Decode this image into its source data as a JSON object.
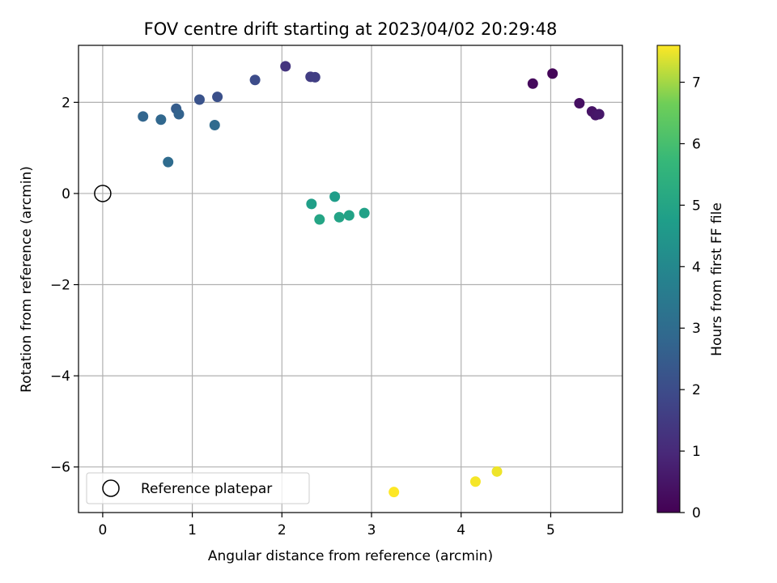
{
  "chart_data": {
    "type": "scatter",
    "title": "FOV centre drift starting at 2023/04/02 20:29:48",
    "xlabel": "Angular distance from reference (arcmin)",
    "ylabel": "Rotation from reference (arcmin)",
    "xlim": [
      -0.27,
      5.8
    ],
    "ylim": [
      -7.0,
      3.25
    ],
    "xticks": [
      0,
      1,
      2,
      3,
      4,
      5
    ],
    "yticks": [
      -6,
      -4,
      -2,
      0,
      2
    ],
    "grid": true,
    "legend": {
      "label": "Reference platepar",
      "placement": "lower-left"
    },
    "reference_point": {
      "x": 0,
      "y": 0
    },
    "colorbar": {
      "label": "Hours from first FF file",
      "range": [
        0,
        7.6
      ],
      "ticks": [
        0,
        1,
        2,
        3,
        4,
        5,
        6,
        7
      ],
      "colormap": "viridis"
    },
    "points": [
      {
        "x": 5.02,
        "y": 2.63,
        "hours": 0.1
      },
      {
        "x": 4.8,
        "y": 2.41,
        "hours": 0.2
      },
      {
        "x": 5.32,
        "y": 1.98,
        "hours": 0.35
      },
      {
        "x": 5.46,
        "y": 1.8,
        "hours": 0.45
      },
      {
        "x": 5.5,
        "y": 1.72,
        "hours": 0.5
      },
      {
        "x": 5.54,
        "y": 1.74,
        "hours": 0.55
      },
      {
        "x": 2.04,
        "y": 2.79,
        "hours": 1.3
      },
      {
        "x": 2.32,
        "y": 2.56,
        "hours": 1.55
      },
      {
        "x": 2.37,
        "y": 2.55,
        "hours": 1.6
      },
      {
        "x": 1.7,
        "y": 2.49,
        "hours": 2.0
      },
      {
        "x": 1.28,
        "y": 2.12,
        "hours": 2.1
      },
      {
        "x": 1.08,
        "y": 2.06,
        "hours": 2.2
      },
      {
        "x": 0.82,
        "y": 1.86,
        "hours": 2.5
      },
      {
        "x": 0.85,
        "y": 1.74,
        "hours": 2.7
      },
      {
        "x": 0.45,
        "y": 1.69,
        "hours": 2.8
      },
      {
        "x": 0.65,
        "y": 1.62,
        "hours": 2.85
      },
      {
        "x": 1.25,
        "y": 1.5,
        "hours": 2.95
      },
      {
        "x": 0.73,
        "y": 0.69,
        "hours": 3.0
      },
      {
        "x": 2.59,
        "y": -0.07,
        "hours": 4.7
      },
      {
        "x": 2.33,
        "y": -0.23,
        "hours": 4.8
      },
      {
        "x": 2.92,
        "y": -0.43,
        "hours": 4.85
      },
      {
        "x": 2.75,
        "y": -0.48,
        "hours": 4.9
      },
      {
        "x": 2.64,
        "y": -0.52,
        "hours": 4.95
      },
      {
        "x": 2.42,
        "y": -0.57,
        "hours": 5.0
      },
      {
        "x": 4.4,
        "y": -6.1,
        "hours": 7.5
      },
      {
        "x": 4.16,
        "y": -6.32,
        "hours": 7.55
      },
      {
        "x": 3.25,
        "y": -6.55,
        "hours": 7.6
      }
    ]
  }
}
